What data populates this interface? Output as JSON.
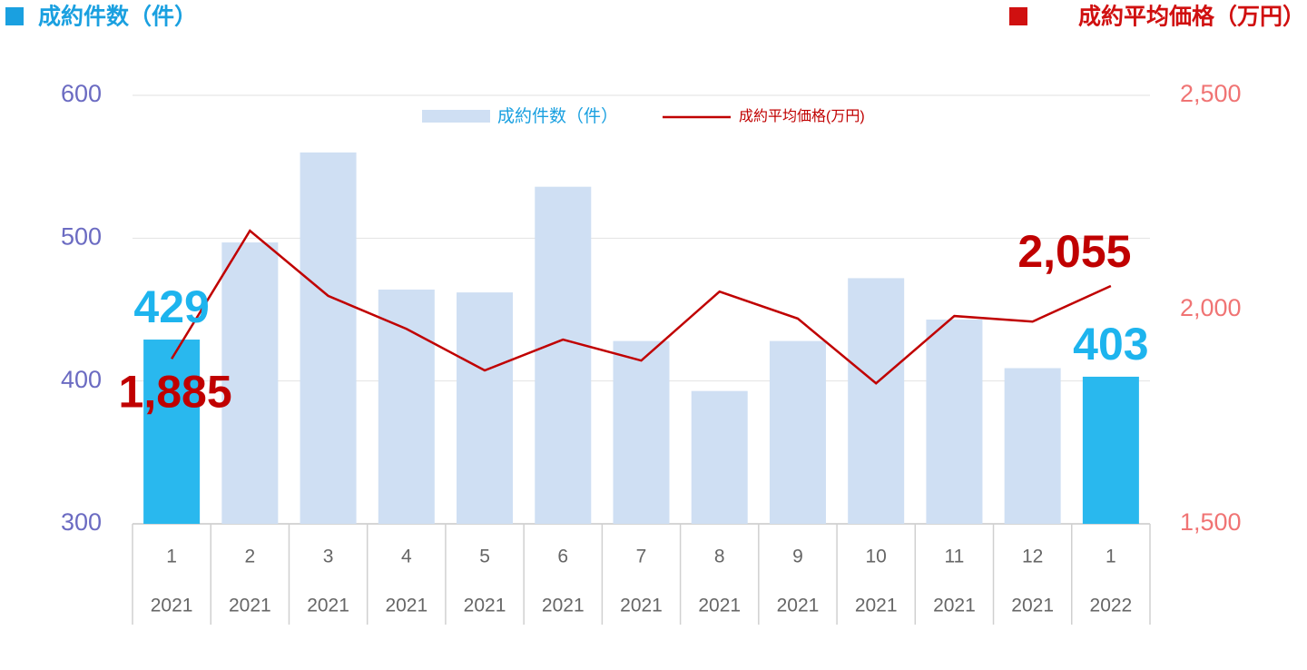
{
  "chart_data": {
    "type": "bar_line",
    "y_axis_title": "成約件数（件）",
    "y2_axis_title": "成約平均価格（万円）",
    "categories": [
      "1",
      "2",
      "3",
      "4",
      "5",
      "6",
      "7",
      "8",
      "9",
      "10",
      "11",
      "12",
      "1"
    ],
    "years": [
      "2021",
      "2021",
      "2021",
      "2021",
      "2021",
      "2021",
      "2021",
      "2021",
      "2021",
      "2021",
      "2021",
      "2021",
      "2022"
    ],
    "series": [
      {
        "name": "成約件数（件）",
        "type": "bar",
        "color": "#cfdff3",
        "colors": [
          "#29b8ee",
          "#cfdff3",
          "#cfdff3",
          "#cfdff3",
          "#cfdff3",
          "#cfdff3",
          "#cfdff3",
          "#cfdff3",
          "#cfdff3",
          "#cfdff3",
          "#cfdff3",
          "#cfdff3",
          "#29b8ee"
        ],
        "values": [
          429,
          497,
          560,
          464,
          462,
          536,
          428,
          393,
          428,
          472,
          443,
          409,
          403
        ],
        "value_labels": [
          "429",
          null,
          null,
          null,
          null,
          null,
          null,
          null,
          null,
          null,
          null,
          null,
          "403"
        ]
      },
      {
        "name": "成約平均価格(万円)",
        "type": "line",
        "axis": "y2",
        "color": "#c00000",
        "values": [
          1885,
          2184,
          2032,
          1955,
          1858,
          1930,
          1881,
          2042,
          1979,
          1828,
          1985,
          1972,
          2055
        ],
        "value_labels": [
          "1,885",
          null,
          null,
          null,
          null,
          null,
          null,
          null,
          null,
          null,
          null,
          null,
          "2,055"
        ]
      }
    ],
    "ylim": [
      300,
      600
    ],
    "yticks": [
      300,
      400,
      500,
      600
    ],
    "y2lim": [
      1500,
      2500
    ],
    "y2ticks": [
      {
        "value": 1500,
        "label": "1,500"
      },
      {
        "value": 2000,
        "label": "2,000"
      },
      {
        "value": 2500,
        "label": "2,500"
      }
    ],
    "grid": true
  }
}
